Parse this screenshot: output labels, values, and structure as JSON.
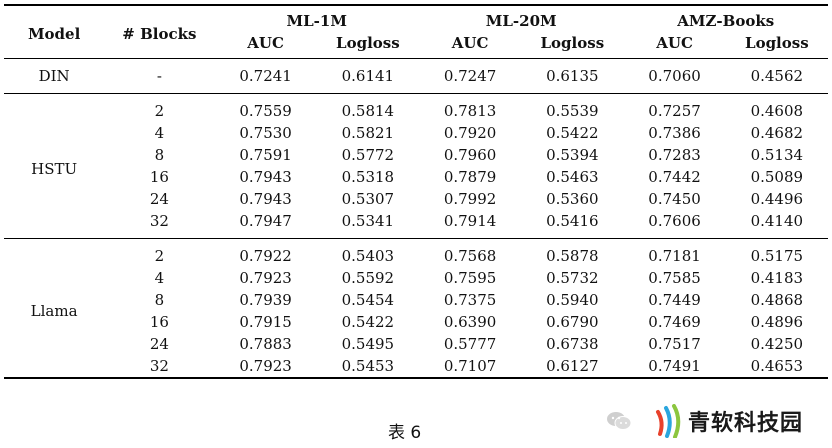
{
  "headers": {
    "model": "Model",
    "blocks": "# Blocks",
    "datasets": [
      "ML-1M",
      "ML-20M",
      "AMZ-Books"
    ],
    "metrics": [
      "AUC",
      "Logloss",
      "AUC",
      "Logloss",
      "AUC",
      "Logloss"
    ]
  },
  "groups": [
    {
      "model": "DIN",
      "rows": [
        {
          "blocks": "-",
          "values": [
            "0.7241",
            "0.6141",
            "0.7247",
            "0.6135",
            "0.7060",
            "0.4562"
          ]
        }
      ]
    },
    {
      "model": "HSTU",
      "rows": [
        {
          "blocks": "2",
          "values": [
            "0.7559",
            "0.5814",
            "0.7813",
            "0.5539",
            "0.7257",
            "0.4608"
          ]
        },
        {
          "blocks": "4",
          "values": [
            "0.7530",
            "0.5821",
            "0.7920",
            "0.5422",
            "0.7386",
            "0.4682"
          ]
        },
        {
          "blocks": "8",
          "values": [
            "0.7591",
            "0.5772",
            "0.7960",
            "0.5394",
            "0.7283",
            "0.5134"
          ]
        },
        {
          "blocks": "16",
          "values": [
            "0.7943",
            "0.5318",
            "0.7879",
            "0.5463",
            "0.7442",
            "0.5089"
          ]
        },
        {
          "blocks": "24",
          "values": [
            "0.7943",
            "0.5307",
            "0.7992",
            "0.5360",
            "0.7450",
            "0.4496"
          ]
        },
        {
          "blocks": "32",
          "values": [
            "0.7947",
            "0.5341",
            "0.7914",
            "0.5416",
            "0.7606",
            "0.4140"
          ]
        }
      ]
    },
    {
      "model": "Llama",
      "rows": [
        {
          "blocks": "2",
          "values": [
            "0.7922",
            "0.5403",
            "0.7568",
            "0.5878",
            "0.7181",
            "0.5175"
          ]
        },
        {
          "blocks": "4",
          "values": [
            "0.7923",
            "0.5592",
            "0.7595",
            "0.5732",
            "0.7585",
            "0.4183"
          ]
        },
        {
          "blocks": "8",
          "values": [
            "0.7939",
            "0.5454",
            "0.7375",
            "0.5940",
            "0.7449",
            "0.4868"
          ]
        },
        {
          "blocks": "16",
          "values": [
            "0.7915",
            "0.5422",
            "0.6390",
            "0.6790",
            "0.7469",
            "0.4896"
          ]
        },
        {
          "blocks": "24",
          "values": [
            "0.7883",
            "0.5495",
            "0.5777",
            "0.6738",
            "0.7517",
            "0.4250"
          ]
        },
        {
          "blocks": "32",
          "values": [
            "0.7923",
            "0.5453",
            "0.7107",
            "0.6127",
            "0.7491",
            "0.4653"
          ]
        }
      ]
    }
  ],
  "caption": "表 6",
  "watermark": {
    "text": "青软科技园",
    "icon": "wechat-icon",
    "logo_colors": [
      "#e8412b",
      "#2aa6de",
      "#8cc63f"
    ]
  }
}
